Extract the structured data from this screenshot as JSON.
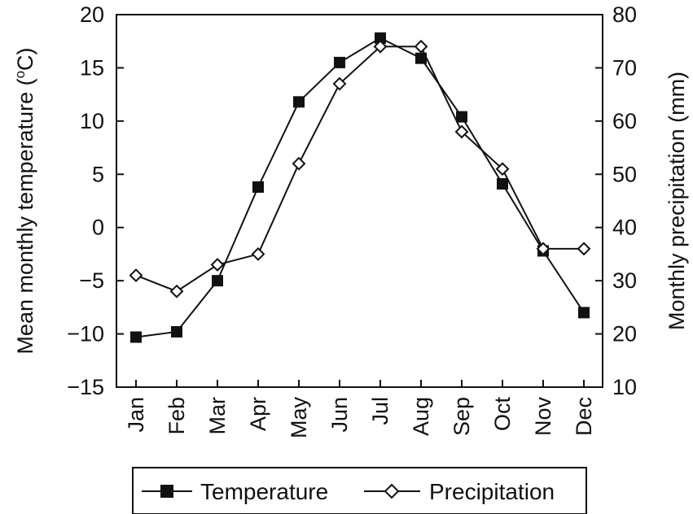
{
  "chart_data": {
    "type": "line",
    "categories": [
      "Jan",
      "Feb",
      "Mar",
      "Apr",
      "May",
      "Jun",
      "Jul",
      "Aug",
      "Sep",
      "Oct",
      "Nov",
      "Dec"
    ],
    "y_left": {
      "label": "Mean monthly temperature (°C)",
      "label_main": "Mean monthly temperature (",
      "label_sup": "o",
      "label_end": "C)",
      "range": [
        -15,
        20
      ],
      "ticks": [
        "20",
        "15",
        "10",
        "5",
        "0",
        "−5",
        "−10",
        "−15"
      ],
      "tick_values": [
        20,
        15,
        10,
        5,
        0,
        -5,
        -10,
        -15
      ]
    },
    "y_right": {
      "label": "Monthly precipitation (mm)",
      "range": [
        10,
        80
      ],
      "ticks": [
        "80",
        "70",
        "60",
        "50",
        "40",
        "30",
        "20",
        "10"
      ],
      "tick_values": [
        80,
        70,
        60,
        50,
        40,
        30,
        20,
        10
      ]
    },
    "series": [
      {
        "name": "Temperature",
        "axis": "left",
        "marker": "filled-square",
        "values": [
          -10.3,
          -9.8,
          -5.0,
          3.8,
          11.8,
          15.5,
          17.8,
          15.9,
          10.4,
          4.1,
          -2.2,
          -8.0
        ]
      },
      {
        "name": "Precipitation",
        "axis": "right",
        "marker": "open-diamond",
        "values": [
          31,
          28,
          33,
          35,
          52,
          67,
          74,
          74,
          58,
          51,
          36,
          36
        ]
      }
    ],
    "legend": {
      "position": "bottom"
    },
    "grid": false
  }
}
